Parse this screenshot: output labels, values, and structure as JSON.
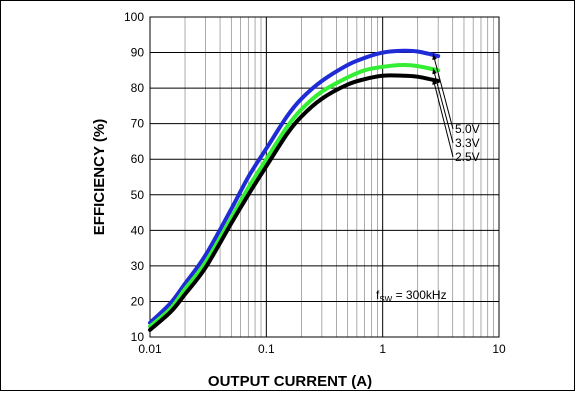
{
  "chart_data": {
    "type": "line",
    "xscale": "log",
    "xlim": [
      0.01,
      10
    ],
    "ylim": [
      10,
      100
    ],
    "grid": true,
    "xlabel": "OUTPUT CURRENT (A)",
    "ylabel": "EFFICIENCY (%)",
    "xticks": [
      "0.01",
      "0.1",
      "1",
      "10"
    ],
    "yticks": [
      "10",
      "20",
      "30",
      "40",
      "50",
      "60",
      "70",
      "80",
      "90",
      "100"
    ],
    "annotation": {
      "main": "f",
      "sub": "SW",
      "rest": " = 300kHz"
    },
    "series": [
      {
        "name": "5.0V",
        "color": "#1f2bd6",
        "x": [
          0.01,
          0.015,
          0.02,
          0.03,
          0.05,
          0.07,
          0.1,
          0.15,
          0.2,
          0.3,
          0.5,
          0.7,
          1,
          1.5,
          2,
          3
        ],
        "y": [
          14,
          19.5,
          25,
          33,
          46,
          55,
          63,
          72,
          77,
          82,
          86.5,
          88.5,
          90,
          90.5,
          90.3,
          89
        ]
      },
      {
        "name": "3.3V",
        "color": "#33ee33",
        "x": [
          0.01,
          0.015,
          0.02,
          0.03,
          0.05,
          0.07,
          0.1,
          0.15,
          0.2,
          0.3,
          0.5,
          0.7,
          1,
          1.5,
          2,
          3
        ],
        "y": [
          13,
          18,
          23.5,
          31,
          43.5,
          52,
          60,
          69,
          74,
          79,
          83,
          85,
          86,
          86.5,
          86.2,
          85
        ]
      },
      {
        "name": "2.5V",
        "color": "#000000",
        "x": [
          0.01,
          0.015,
          0.02,
          0.03,
          0.05,
          0.07,
          0.1,
          0.15,
          0.2,
          0.3,
          0.5,
          0.7,
          1,
          1.5,
          2,
          3
        ],
        "y": [
          12,
          17,
          22,
          29.5,
          42,
          50,
          58,
          67,
          72,
          77,
          81,
          82.5,
          83.5,
          83.5,
          83.2,
          82
        ]
      }
    ]
  }
}
